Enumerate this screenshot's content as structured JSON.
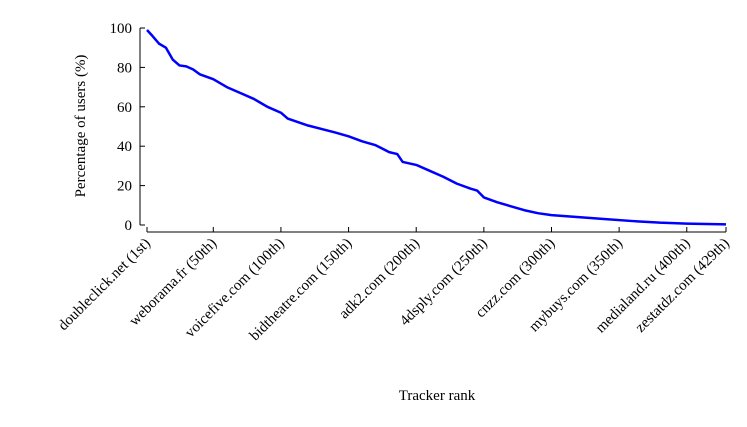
{
  "chart_data": {
    "type": "line",
    "x_label": "Tracker rank",
    "y_label": "Percentage of users (%)",
    "x": [
      1,
      5,
      10,
      15,
      20,
      25,
      30,
      35,
      40,
      50,
      60,
      70,
      80,
      85,
      90,
      100,
      105,
      120,
      140,
      150,
      160,
      170,
      180,
      186,
      190,
      200,
      210,
      220,
      230,
      240,
      245,
      250,
      260,
      270,
      280,
      290,
      300,
      320,
      340,
      360,
      380,
      400,
      429
    ],
    "values": [
      99,
      96,
      92,
      90,
      84,
      81,
      80.5,
      79,
      76.5,
      74,
      70,
      67,
      64,
      62,
      60,
      57,
      54,
      50.5,
      47,
      45,
      42.5,
      40.5,
      37,
      36,
      32,
      30.5,
      27.5,
      24.5,
      21,
      18.5,
      17.5,
      14,
      11.5,
      9.5,
      7.5,
      6,
      5,
      4,
      3,
      2,
      1.2,
      0.7,
      0.3
    ],
    "color": "#0000ff",
    "xlim": [
      1,
      429
    ],
    "ylim": [
      0,
      100
    ],
    "yticks": [
      0,
      20,
      40,
      60,
      80,
      100
    ],
    "xticks": [
      {
        "value": 1,
        "label": "doubleclick.net (1st)"
      },
      {
        "value": 50,
        "label": "weborama.fr (50th)"
      },
      {
        "value": 100,
        "label": "voicefive.com (100th)"
      },
      {
        "value": 150,
        "label": "bidtheatre.com (150th)"
      },
      {
        "value": 200,
        "label": "adk2.com (200th)"
      },
      {
        "value": 250,
        "label": "4dsply.com (250th)"
      },
      {
        "value": 300,
        "label": "cnzz.com (300th)"
      },
      {
        "value": 350,
        "label": "mybuys.com (350th)"
      },
      {
        "value": 400,
        "label": "medialand.ru (400th)"
      },
      {
        "value": 429,
        "label": "zestatdz.com (429th)"
      }
    ]
  }
}
